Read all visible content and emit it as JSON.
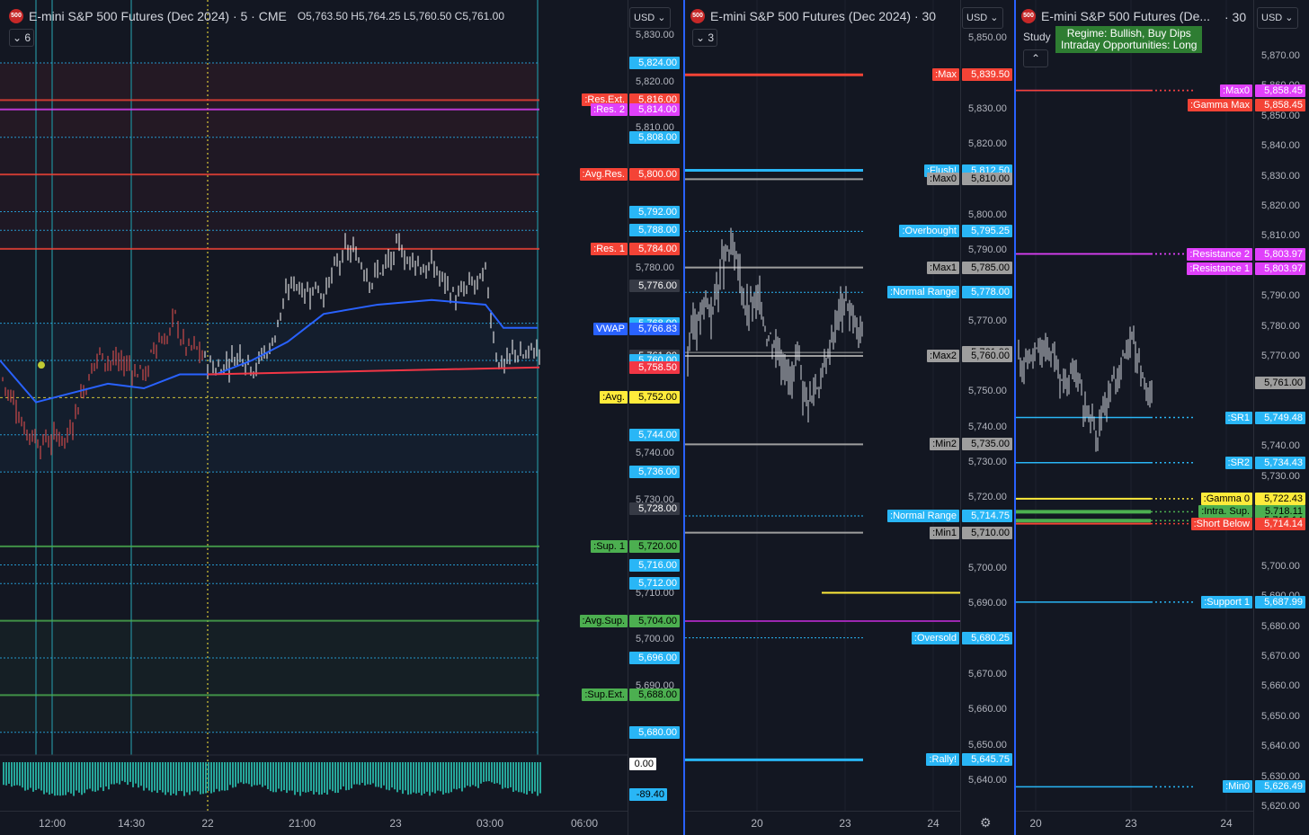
{
  "colors": {
    "bg": "#131722",
    "blue": "#29b6f6",
    "red": "#f44336",
    "pink": "#e040fb",
    "green": "#4caf50",
    "yellow": "#ffeb3b",
    "gray": "#b2b5be"
  },
  "panes": [
    {
      "title": "E-mini S&P 500 Futures (Dec 2024) · 5 · CME",
      "ohlc": "O5,763.50  H5,764.25  L5,760.50  C5,761.00",
      "badge": "500",
      "collapse_count": "6",
      "currency": "USD",
      "ticks": [
        "5,830.00",
        "5,820.00",
        "5,810.00",
        "5,780.00",
        "5,740.00",
        "5,730.00",
        "5,710.00",
        "5,700.00",
        "5,690.00"
      ],
      "tick_values": [
        5830,
        5820,
        5810,
        5780,
        5740,
        5730,
        5710,
        5700,
        5690
      ],
      "levels": [
        {
          "label": "",
          "value": "5,824.00",
          "price": 5824,
          "color": "#29b6f6"
        },
        {
          "label": ":Res.Ext.",
          "value": "5,816.00",
          "price": 5816,
          "color": "#f44336"
        },
        {
          "label": ":Res. 2",
          "value": "5,814.00",
          "price": 5814,
          "color": "#e040fb"
        },
        {
          "label": "",
          "value": "5,808.00",
          "price": 5808,
          "color": "#29b6f6"
        },
        {
          "label": ":Avg.Res.",
          "value": "5,800.00",
          "price": 5800,
          "color": "#f44336"
        },
        {
          "label": "",
          "value": "5,792.00",
          "price": 5792,
          "color": "#29b6f6"
        },
        {
          "label": "",
          "value": "5,788.00",
          "price": 5788,
          "color": "#29b6f6"
        },
        {
          "label": ":Res. 1",
          "value": "5,784.00",
          "price": 5784,
          "color": "#f44336"
        },
        {
          "label": "",
          "value": "5,776.00",
          "price": 5776,
          "color": "#363a45"
        },
        {
          "label": "",
          "value": "5,768.00",
          "price": 5768,
          "color": "#29b6f6"
        },
        {
          "label": "VWAP",
          "value": "5,766.83",
          "price": 5766.83,
          "color": "#2962ff"
        },
        {
          "label": "",
          "value": "5,761.00",
          "price": 5761,
          "color": "#363a45"
        },
        {
          "label": "",
          "value": "5,760.00",
          "price": 5760,
          "color": "#29b6f6"
        },
        {
          "label": "",
          "value": "5,758.50",
          "price": 5758.5,
          "color": "#f23645"
        },
        {
          "label": ":Avg.",
          "value": "5,752.00",
          "price": 5752,
          "color": "#ffeb3b"
        },
        {
          "label": "",
          "value": "5,744.00",
          "price": 5744,
          "color": "#29b6f6"
        },
        {
          "label": "",
          "value": "5,736.00",
          "price": 5736,
          "color": "#29b6f6"
        },
        {
          "label": "",
          "value": "5,728.00",
          "price": 5728,
          "color": "#363a45"
        },
        {
          "label": ":Sup. 1",
          "value": "5,720.00",
          "price": 5720,
          "color": "#4caf50"
        },
        {
          "label": "",
          "value": "5,716.00",
          "price": 5716,
          "color": "#29b6f6"
        },
        {
          "label": "",
          "value": "5,712.00",
          "price": 5712,
          "color": "#29b6f6"
        },
        {
          "label": ":Avg.Sup.",
          "value": "5,704.00",
          "price": 5704,
          "color": "#4caf50"
        },
        {
          "label": "",
          "value": "5,696.00",
          "price": 5696,
          "color": "#29b6f6"
        },
        {
          "label": ":Sup.Ext.",
          "value": "5,688.00",
          "price": 5688,
          "color": "#4caf50"
        },
        {
          "label": "",
          "value": "5,680.00",
          "price": 5680,
          "color": "#29b6f6"
        }
      ],
      "volume_tags": [
        {
          "value": "0.00",
          "color": "#ffffff"
        },
        {
          "value": "-89.40",
          "color": "#29b6f6"
        }
      ],
      "xlabels": [
        "12:00",
        "14:30",
        "22",
        "21:00",
        "23",
        "03:00",
        "06:00"
      ]
    },
    {
      "title": "E-mini S&P 500 Futures (Dec 2024) · 30",
      "badge": "500",
      "collapse_count": "3",
      "currency": "USD",
      "ticks": [
        "5,850.00",
        "5,830.00",
        "5,820.00",
        "5,800.00",
        "5,790.00",
        "5,770.00",
        "5,750.00",
        "5,740.00",
        "5,730.00",
        "5,720.00",
        "5,700.00",
        "5,690.00",
        "5,670.00",
        "5,660.00",
        "5,650.00",
        "5,640.00"
      ],
      "tick_values": [
        5850,
        5830,
        5820,
        5800,
        5790,
        5770,
        5750,
        5740,
        5730,
        5720,
        5700,
        5690,
        5670,
        5660,
        5650,
        5640
      ],
      "levels": [
        {
          "label": ":Max",
          "value": "5,839.50",
          "price": 5839.5,
          "color": "#f44336"
        },
        {
          "label": ":Flush!",
          "value": "5,812.50",
          "price": 5812.5,
          "color": "#29b6f6"
        },
        {
          "label": ":Max0",
          "value": "5,810.00",
          "price": 5810,
          "color": "#9e9e9e"
        },
        {
          "label": ":Overbought",
          "value": "5,795.25",
          "price": 5795.25,
          "color": "#29b6f6"
        },
        {
          "label": ":Max1",
          "value": "5,785.00",
          "price": 5785,
          "color": "#9e9e9e"
        },
        {
          "label": ":Normal Range",
          "value": "5,778.00",
          "price": 5778,
          "color": "#29b6f6"
        },
        {
          "label": "",
          "value": "5,761.00",
          "price": 5761,
          "color": "#9e9e9e"
        },
        {
          "label": ":Max2",
          "value": "5,760.00",
          "price": 5760,
          "color": "#9e9e9e"
        },
        {
          "label": ":Min2",
          "value": "5,735.00",
          "price": 5735,
          "color": "#9e9e9e"
        },
        {
          "label": ":Normal Range",
          "value": "5,714.75",
          "price": 5714.75,
          "color": "#29b6f6"
        },
        {
          "label": ":Min1",
          "value": "5,710.00",
          "price": 5710,
          "color": "#9e9e9e"
        },
        {
          "label": ":Oversold",
          "value": "5,680.25",
          "price": 5680.25,
          "color": "#29b6f6"
        },
        {
          "label": ":Rally!",
          "value": "5,645.75",
          "price": 5645.75,
          "color": "#29b6f6"
        }
      ],
      "xlabels": [
        "20",
        "23",
        "24"
      ]
    },
    {
      "title": "E-mini S&P 500 Futures (De...",
      "interval": "· 30",
      "badge": "500",
      "study_label": "Study",
      "currency": "USD",
      "regime_line1": "Regime: Bullish, Buy Dips",
      "regime_line2": "Intraday Opportunities: Long",
      "ticks": [
        "5,870.00",
        "5,860.00",
        "5,850.00",
        "5,840.00",
        "5,830.00",
        "5,820.00",
        "5,810.00",
        "5,790.00",
        "5,780.00",
        "5,770.00",
        "5,740.00",
        "5,730.00",
        "5,720.00",
        "5,700.00",
        "5,690.00",
        "5,680.00",
        "5,670.00",
        "5,660.00",
        "5,650.00",
        "5,640.00",
        "5,630.00",
        "5,620.00"
      ],
      "tick_values": [
        5870,
        5860,
        5850,
        5840,
        5830,
        5820,
        5810,
        5790,
        5780,
        5770,
        5740,
        5730,
        5720,
        5700,
        5690,
        5680,
        5670,
        5660,
        5650,
        5640,
        5630,
        5620
      ],
      "levels": [
        {
          "label": ":Max0",
          "value": "5,858.45",
          "price": 5858.45,
          "color": "#e040fb"
        },
        {
          "label": ":Gamma Max",
          "value": "5,858.45",
          "price": 5858.45,
          "color": "#f44336"
        },
        {
          "label": ":Resistance 2",
          "value": "5,803.97",
          "price": 5803.97,
          "color": "#e040fb"
        },
        {
          "label": ":Resistance 1",
          "value": "5,803.97",
          "price": 5803.97,
          "color": "#e040fb"
        },
        {
          "label": "",
          "value": "5,761.00",
          "price": 5761,
          "color": "#9e9e9e"
        },
        {
          "label": ":SR1",
          "value": "5,749.48",
          "price": 5749.48,
          "color": "#29b6f6"
        },
        {
          "label": ":SR2",
          "value": "5,734.43",
          "price": 5734.43,
          "color": "#29b6f6"
        },
        {
          "label": ":Gamma 0",
          "value": "5,722.43",
          "price": 5722.43,
          "color": "#ffeb3b"
        },
        {
          "label": ":Intra. Sup.",
          "value": "5,718.11",
          "price": 5718.11,
          "color": "#4caf50"
        },
        {
          "label": "",
          "value": "5,715.14",
          "price": 5715.14,
          "color": "#4caf50"
        },
        {
          "label": ":Short Below",
          "value": "5,714.14",
          "price": 5714.14,
          "color": "#f44336"
        },
        {
          "label": ":Support 1",
          "value": "5,687.99",
          "price": 5687.99,
          "color": "#29b6f6"
        },
        {
          "label": ":Min0",
          "value": "5,626.49",
          "price": 5626.49,
          "color": "#29b6f6"
        }
      ],
      "xlabels": [
        "20",
        "23",
        "24"
      ]
    }
  ]
}
